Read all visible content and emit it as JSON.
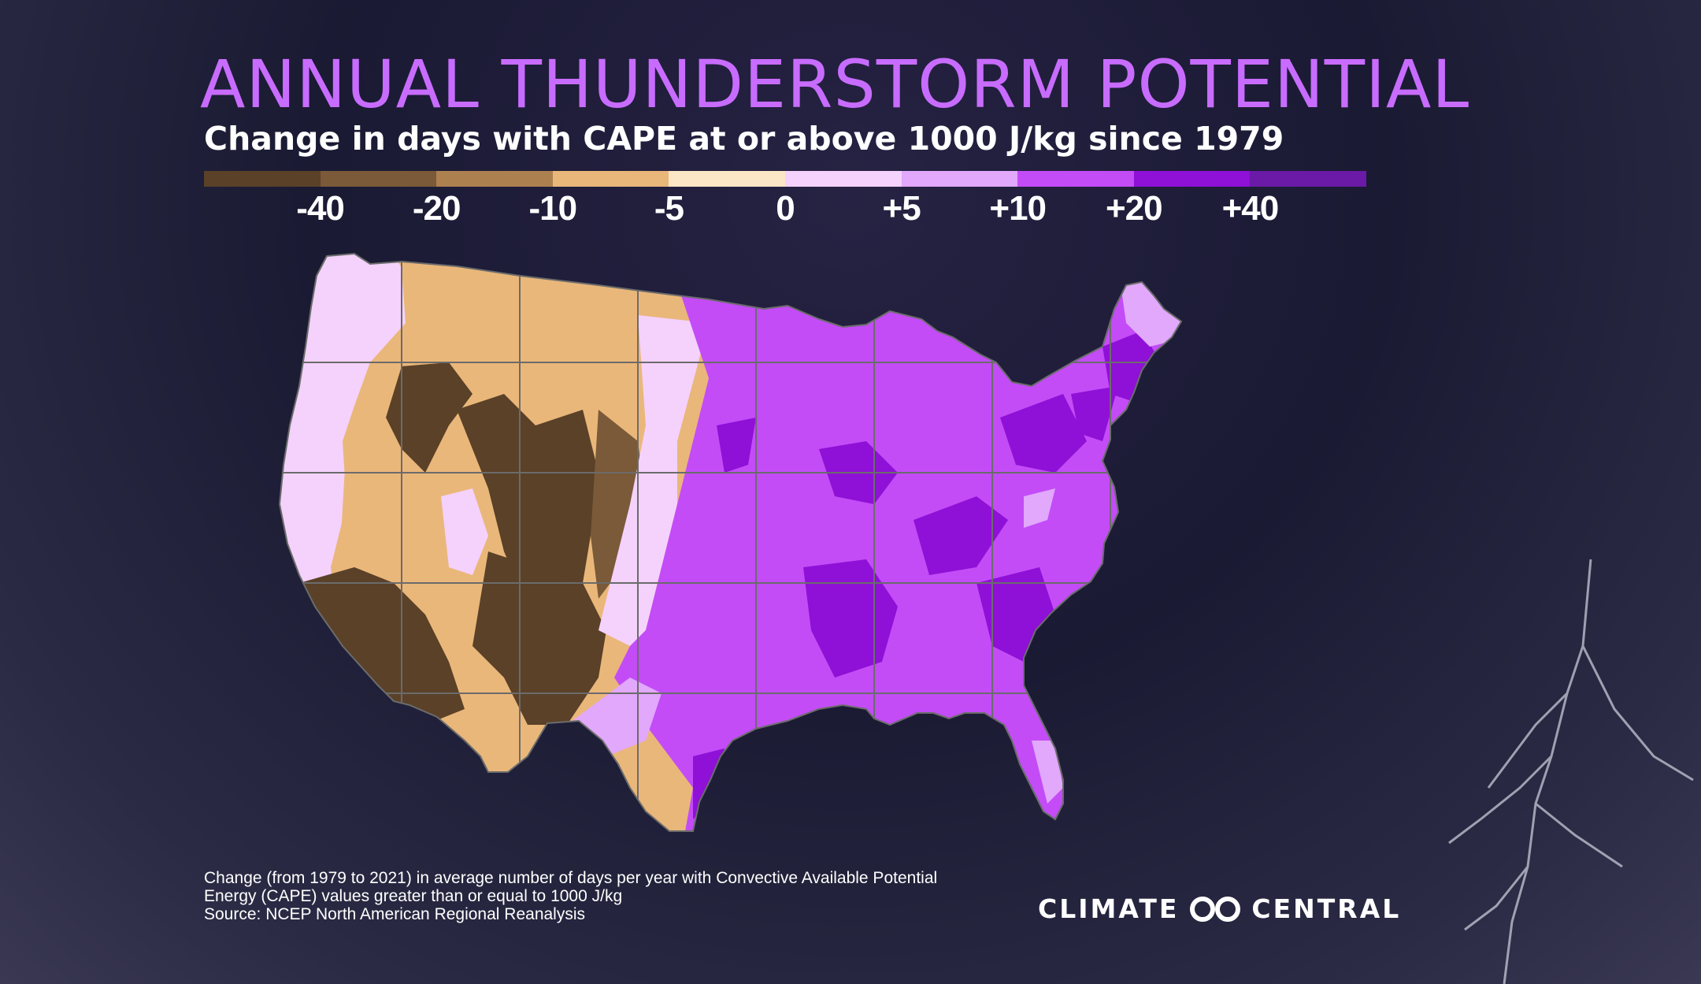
{
  "title": "ANNUAL THUNDERSTORM POTENTIAL",
  "subtitle": "Change in days with CAPE at or above 1000 J/kg since 1979",
  "legend": {
    "colors": [
      "#5a4128",
      "#7a5a38",
      "#ad8050",
      "#eab77a",
      "#fbe6c6",
      "#f4d2fc",
      "#e1a8fb",
      "#c34cf7",
      "#8f10d6",
      "#6a1aa6"
    ],
    "labels": [
      "-40",
      "-20",
      "-10",
      "-5",
      "0",
      "+5",
      "+10",
      "+20",
      "+40"
    ]
  },
  "notes": {
    "line1": "Change (from 1979 to 2021) in average number of days per year with Convective Available Potential",
    "line2": "Energy (CAPE) values greater than or equal to 1000 J/kg",
    "source": "Source: NCEP North American Regional Reanalysis"
  },
  "logo": {
    "left": "CLIMATE",
    "right": "CENTRAL",
    "icon": "infinity-loop-icon"
  },
  "map": {
    "region": "Contiguous United States",
    "regions": [
      {
        "name": "Pacific Northwest",
        "level": "+5"
      },
      {
        "name": "California coast",
        "level": "+5"
      },
      {
        "name": "Great Basin / Nevada",
        "level": "-5"
      },
      {
        "name": "Northern Rockies / Montana",
        "level": "-5"
      },
      {
        "name": "Wyoming / Colorado Rockies",
        "level": "-20"
      },
      {
        "name": "Southwest / Arizona / New Mexico",
        "level": "-40"
      },
      {
        "name": "Great Plains",
        "level": "-10"
      },
      {
        "name": "Upper Midwest edge",
        "level": "+5"
      },
      {
        "name": "Midwest / Great Lakes",
        "level": "+10"
      },
      {
        "name": "Ohio / Tennessee Valley",
        "level": "+20"
      },
      {
        "name": "Southeast",
        "level": "+20"
      },
      {
        "name": "Northeast",
        "level": "+10"
      },
      {
        "name": "Texas Gulf / South Texas",
        "level": "+10"
      },
      {
        "name": "Florida",
        "level": "+10"
      }
    ]
  }
}
